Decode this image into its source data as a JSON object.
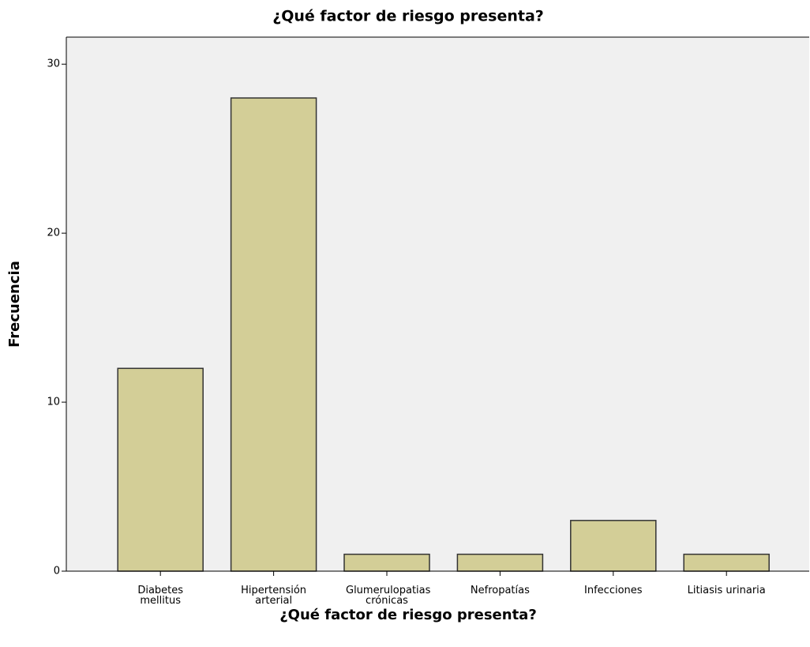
{
  "chart_data": {
    "type": "bar",
    "title": "¿Qué factor de riesgo presenta?",
    "x_label": "¿Qué factor de riesgo presenta?",
    "y_label": "Frecuencia",
    "categories": [
      "Diabetes mellitus",
      "Hipertensión arterial",
      "Glumerulopatias crónicas",
      "Nefropatías",
      "Infecciones",
      "Litiasis urinaria"
    ],
    "values": [
      12,
      28,
      1,
      1,
      3,
      1
    ],
    "color": "#d3ce97",
    "ylim": [
      0,
      31.6
    ],
    "yticks": [
      0,
      10,
      20,
      30
    ],
    "grid": false
  }
}
